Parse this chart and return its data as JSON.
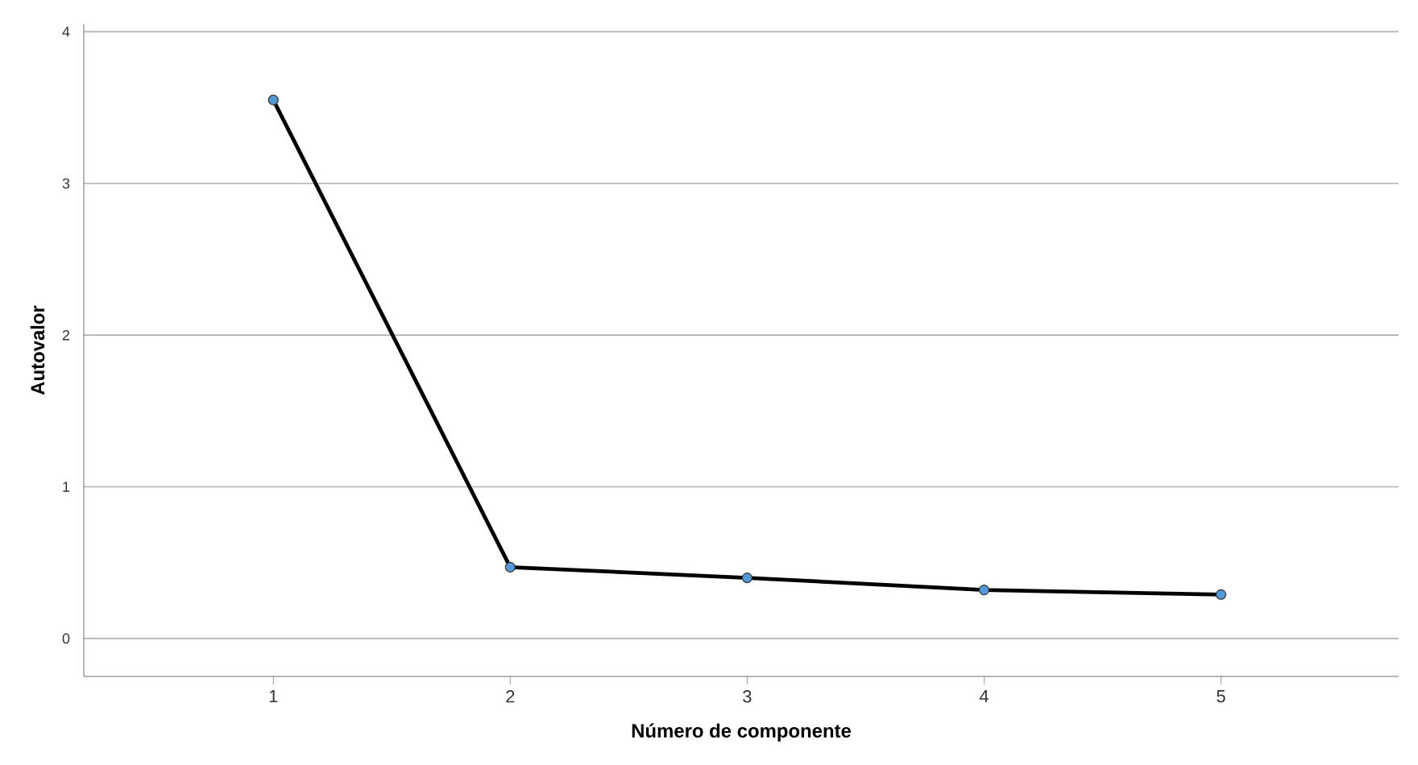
{
  "chart_data": {
    "type": "line",
    "xlabel": "Número de componente",
    "ylabel": "Autovalor",
    "x": [
      1,
      2,
      3,
      4,
      5
    ],
    "series": [
      {
        "color": "#000000",
        "values": [
          3.55,
          0.47,
          0.4,
          0.32,
          0.29
        ]
      }
    ],
    "xlim": [
      0.2,
      5.75
    ],
    "xticks": [
      1,
      2,
      3,
      4,
      5
    ],
    "ylim": [
      -0.25,
      4.05
    ],
    "yticks": [
      0,
      1,
      2,
      3,
      4
    ],
    "grid": "y",
    "marker": "circle",
    "line_style": "solid"
  }
}
